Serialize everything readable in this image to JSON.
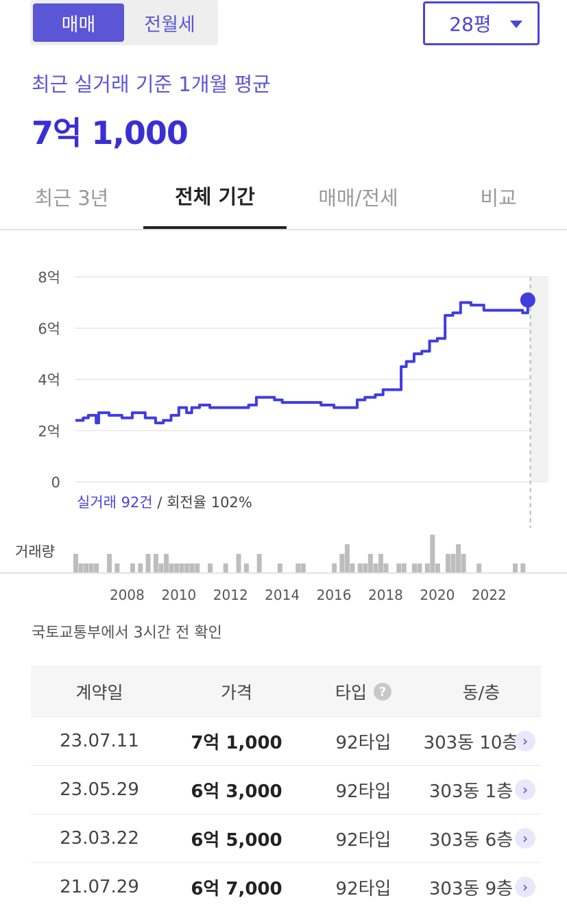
{
  "toggle": {
    "options": [
      "매매",
      "전월세"
    ],
    "selected": "매매"
  },
  "area_select": {
    "value": "28평"
  },
  "summary": {
    "label": "최근 실거래 기준 1개월 평균",
    "value": "7억 1,000"
  },
  "tabs": [
    {
      "label": "최근 3년",
      "active": false
    },
    {
      "label": "전체 기간",
      "active": true
    },
    {
      "label": "매매/전세",
      "active": false
    },
    {
      "label": "비교",
      "active": false
    }
  ],
  "chart_info": {
    "count_text": "실거래 92건",
    "rate_text": " / 회전율 102%",
    "volume_label": "거래량"
  },
  "source_note": "국토교통부에서 3시간 전 확인",
  "table": {
    "headers": {
      "date": "계약일",
      "price": "가격",
      "type": "타입",
      "type_help": "?",
      "unit": "동/층"
    },
    "rows": [
      {
        "date": "23.07.11",
        "price": "7억 1,000",
        "type": "92타입",
        "unit": "303동 10층"
      },
      {
        "date": "23.05.29",
        "price": "6억 3,000",
        "type": "92타입",
        "unit": "303동 1층"
      },
      {
        "date": "23.03.22",
        "price": "6억 5,000",
        "type": "92타입",
        "unit": "303동 6층"
      },
      {
        "date": "21.07.29",
        "price": "6억 7,000",
        "type": "92타입",
        "unit": "303동 9층"
      }
    ],
    "row_arrow": "›"
  },
  "colors": {
    "accent": "#4a44d8",
    "line": "#3f3ce0",
    "volume": "#bdbdbd",
    "future": "#f2f2f2"
  },
  "chart_data": {
    "type": "line",
    "title": "",
    "ylabel": "",
    "y_ticks": [
      "0",
      "2억",
      "4억",
      "6억",
      "8억"
    ],
    "ylim": [
      0,
      8
    ],
    "x_ticks": [
      "2008",
      "2010",
      "2012",
      "2014",
      "2016",
      "2018",
      "2020",
      "2022"
    ],
    "xlim": [
      2006,
      2024.3
    ],
    "series": [
      {
        "values_x": [
          2006.0,
          2006.3,
          2006.5,
          2006.8,
          2006.9,
          2007.1,
          2007.3,
          2007.8,
          2008.2,
          2008.7,
          2009.1,
          2009.4,
          2009.7,
          2010.0,
          2010.3,
          2010.5,
          2010.8,
          2011.2,
          2011.7,
          2012.2,
          2012.7,
          2013.0,
          2013.2,
          2013.7,
          2014.0,
          2014.5,
          2015.0,
          2015.5,
          2016.0,
          2016.5,
          2016.9,
          2017.2,
          2017.6,
          2017.9,
          2018.3,
          2018.6,
          2018.8,
          2019.1,
          2019.4,
          2019.7,
          2020.0,
          2020.3,
          2020.6,
          2020.9,
          2021.3,
          2021.8,
          2022.5,
          2023.0,
          2023.3,
          2023.5
        ],
        "values_y": [
          2.4,
          2.5,
          2.6,
          2.3,
          2.7,
          2.7,
          2.6,
          2.5,
          2.7,
          2.5,
          2.3,
          2.4,
          2.6,
          2.9,
          2.7,
          2.9,
          3.0,
          2.9,
          2.9,
          2.9,
          3.0,
          3.3,
          3.3,
          3.2,
          3.1,
          3.1,
          3.1,
          3.0,
          2.9,
          2.9,
          3.2,
          3.3,
          3.4,
          3.6,
          3.6,
          4.5,
          4.7,
          5.0,
          5.1,
          5.5,
          5.6,
          6.5,
          6.6,
          7.0,
          6.9,
          6.7,
          6.7,
          6.7,
          6.6,
          7.1
        ]
      }
    ],
    "volume": [
      {
        "x": 2006.0,
        "h": 2
      },
      {
        "x": 2006.2,
        "h": 1
      },
      {
        "x": 2006.4,
        "h": 1
      },
      {
        "x": 2006.6,
        "h": 1
      },
      {
        "x": 2006.8,
        "h": 1
      },
      {
        "x": 2007.3,
        "h": 2
      },
      {
        "x": 2007.6,
        "h": 1
      },
      {
        "x": 2008.2,
        "h": 1
      },
      {
        "x": 2008.5,
        "h": 1
      },
      {
        "x": 2008.8,
        "h": 2
      },
      {
        "x": 2009.1,
        "h": 2
      },
      {
        "x": 2009.3,
        "h": 1
      },
      {
        "x": 2009.5,
        "h": 2
      },
      {
        "x": 2009.7,
        "h": 1
      },
      {
        "x": 2009.9,
        "h": 1
      },
      {
        "x": 2010.1,
        "h": 1
      },
      {
        "x": 2010.3,
        "h": 1
      },
      {
        "x": 2010.5,
        "h": 1
      },
      {
        "x": 2010.7,
        "h": 1
      },
      {
        "x": 2011.2,
        "h": 1
      },
      {
        "x": 2011.8,
        "h": 1
      },
      {
        "x": 2012.3,
        "h": 2
      },
      {
        "x": 2012.6,
        "h": 1
      },
      {
        "x": 2013.1,
        "h": 2
      },
      {
        "x": 2013.9,
        "h": 1
      },
      {
        "x": 2014.6,
        "h": 1
      },
      {
        "x": 2014.8,
        "h": 1
      },
      {
        "x": 2016.0,
        "h": 1
      },
      {
        "x": 2016.3,
        "h": 2
      },
      {
        "x": 2016.5,
        "h": 3
      },
      {
        "x": 2016.7,
        "h": 1
      },
      {
        "x": 2017.0,
        "h": 1
      },
      {
        "x": 2017.2,
        "h": 1
      },
      {
        "x": 2017.4,
        "h": 2
      },
      {
        "x": 2017.6,
        "h": 1
      },
      {
        "x": 2017.8,
        "h": 2
      },
      {
        "x": 2018.0,
        "h": 1
      },
      {
        "x": 2018.5,
        "h": 1
      },
      {
        "x": 2018.7,
        "h": 1
      },
      {
        "x": 2019.1,
        "h": 1
      },
      {
        "x": 2019.3,
        "h": 1
      },
      {
        "x": 2019.6,
        "h": 1
      },
      {
        "x": 2019.8,
        "h": 4
      },
      {
        "x": 2020.0,
        "h": 1
      },
      {
        "x": 2020.4,
        "h": 2
      },
      {
        "x": 2020.6,
        "h": 2
      },
      {
        "x": 2020.8,
        "h": 3
      },
      {
        "x": 2021.0,
        "h": 2
      },
      {
        "x": 2021.6,
        "h": 1
      },
      {
        "x": 2023.0,
        "h": 1
      },
      {
        "x": 2023.3,
        "h": 1
      }
    ]
  }
}
